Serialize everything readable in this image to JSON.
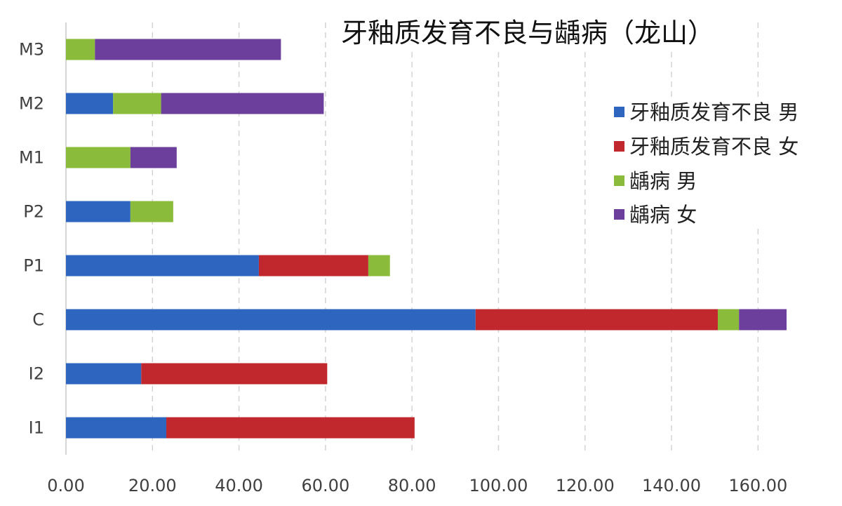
{
  "chart_data": {
    "type": "bar",
    "orientation": "horizontal",
    "stacked": true,
    "title": "牙釉质发育不良与龋病（龙山）",
    "xlabel": "",
    "ylabel": "",
    "categories": [
      "M3",
      "M2",
      "M1",
      "P2",
      "P1",
      "C",
      "I2",
      "I1"
    ],
    "series": [
      {
        "name": "牙釉质发育不良 男",
        "color": "#2e65bf",
        "values": [
          0,
          10.9,
          0,
          14.9,
          44.6,
          94.7,
          17.4,
          23.2
        ]
      },
      {
        "name": "牙釉质发育不良 女",
        "color": "#c0282d",
        "values": [
          0,
          0,
          0,
          0,
          25.3,
          56.0,
          43.0,
          57.4
        ]
      },
      {
        "name": "龋病 男",
        "color": "#8bbb3a",
        "values": [
          6.7,
          11.1,
          14.9,
          9.9,
          5.0,
          4.9,
          0,
          0
        ]
      },
      {
        "name": "龋病 女",
        "color": "#6b3f9b",
        "values": [
          43.0,
          37.6,
          10.7,
          0,
          0,
          11.0,
          0,
          0
        ]
      }
    ],
    "xticks": [
      0,
      20,
      40,
      60,
      80,
      100,
      120,
      140,
      160
    ],
    "xtick_labels": [
      "0.00",
      "20.00",
      "40.00",
      "60.00",
      "80.00",
      "100.00",
      "120.00",
      "140.00",
      "160.00"
    ],
    "xlim": [
      0,
      180
    ],
    "grid": "vertical dashed",
    "legend_position": "right"
  }
}
